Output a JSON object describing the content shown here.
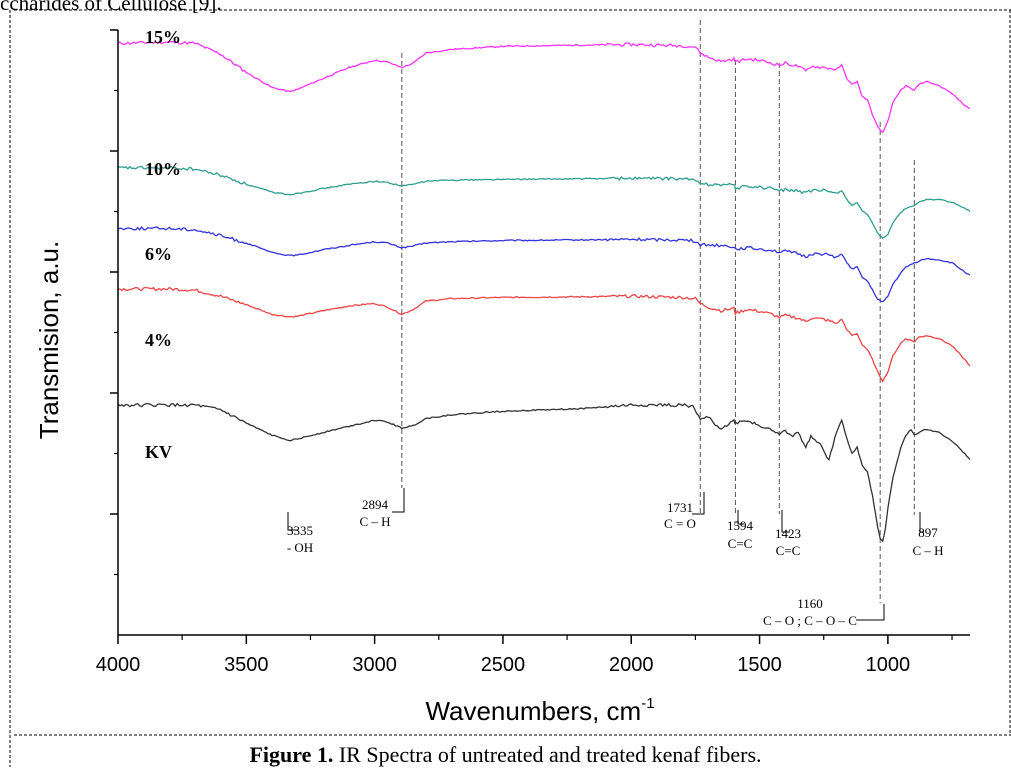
{
  "page": {
    "top_cut_text": "ccharides of Cellulose [9].",
    "caption_label": "Figure 1.",
    "caption_text": " IR Spectra of untreated and treated kenaf fibers."
  },
  "chart_data": {
    "type": "line",
    "title": "",
    "xlabel": "Wavenumbers, cm",
    "xlabel_superscript": "-1",
    "ylabel": "Transmision, a.u.",
    "xlim": [
      4000,
      680
    ],
    "x_reversed": true,
    "x_ticks": [
      4000,
      3500,
      3000,
      2500,
      2000,
      1500,
      1000
    ],
    "y_ticks_labeled": false,
    "ylim": [
      0,
      10
    ],
    "y_major_ticks": [
      2,
      4,
      6,
      8,
      10
    ],
    "grid": false,
    "series": [
      {
        "name": "15%",
        "color": "#ff33ff",
        "points": [
          [
            4000,
            9.78
          ],
          [
            3800,
            9.8
          ],
          [
            3700,
            9.78
          ],
          [
            3600,
            9.6
          ],
          [
            3500,
            9.3
          ],
          [
            3400,
            9.05
          ],
          [
            3330,
            8.98
          ],
          [
            3300,
            9.02
          ],
          [
            3200,
            9.2
          ],
          [
            3100,
            9.38
          ],
          [
            3000,
            9.5
          ],
          [
            2950,
            9.47
          ],
          [
            2894,
            9.38
          ],
          [
            2850,
            9.45
          ],
          [
            2800,
            9.62
          ],
          [
            2700,
            9.68
          ],
          [
            2500,
            9.73
          ],
          [
            2200,
            9.75
          ],
          [
            2000,
            9.76
          ],
          [
            1800,
            9.74
          ],
          [
            1750,
            9.72
          ],
          [
            1731,
            9.62
          ],
          [
            1700,
            9.55
          ],
          [
            1650,
            9.48
          ],
          [
            1600,
            9.52
          ],
          [
            1594,
            9.47
          ],
          [
            1550,
            9.52
          ],
          [
            1500,
            9.5
          ],
          [
            1450,
            9.45
          ],
          [
            1423,
            9.42
          ],
          [
            1400,
            9.45
          ],
          [
            1350,
            9.4
          ],
          [
            1320,
            9.32
          ],
          [
            1300,
            9.4
          ],
          [
            1250,
            9.38
          ],
          [
            1200,
            9.35
          ],
          [
            1180,
            9.42
          ],
          [
            1160,
            9.2
          ],
          [
            1140,
            9.1
          ],
          [
            1120,
            9.15
          ],
          [
            1100,
            8.9
          ],
          [
            1080,
            8.85
          ],
          [
            1060,
            8.6
          ],
          [
            1040,
            8.4
          ],
          [
            1020,
            8.3
          ],
          [
            1000,
            8.5
          ],
          [
            980,
            8.8
          ],
          [
            950,
            9.0
          ],
          [
            930,
            9.08
          ],
          [
            897,
            9.0
          ],
          [
            880,
            9.1
          ],
          [
            850,
            9.15
          ],
          [
            800,
            9.08
          ],
          [
            750,
            8.95
          ],
          [
            700,
            8.75
          ],
          [
            680,
            8.7
          ]
        ]
      },
      {
        "name": "10%",
        "color": "#2e9e8f",
        "points": [
          [
            4000,
            7.72
          ],
          [
            3800,
            7.72
          ],
          [
            3700,
            7.7
          ],
          [
            3600,
            7.6
          ],
          [
            3500,
            7.45
          ],
          [
            3400,
            7.32
          ],
          [
            3330,
            7.28
          ],
          [
            3300,
            7.3
          ],
          [
            3200,
            7.38
          ],
          [
            3100,
            7.45
          ],
          [
            3000,
            7.5
          ],
          [
            2950,
            7.48
          ],
          [
            2894,
            7.42
          ],
          [
            2850,
            7.45
          ],
          [
            2800,
            7.5
          ],
          [
            2700,
            7.52
          ],
          [
            2500,
            7.53
          ],
          [
            2200,
            7.54
          ],
          [
            2000,
            7.55
          ],
          [
            1800,
            7.54
          ],
          [
            1750,
            7.52
          ],
          [
            1731,
            7.45
          ],
          [
            1700,
            7.45
          ],
          [
            1650,
            7.45
          ],
          [
            1600,
            7.44
          ],
          [
            1594,
            7.38
          ],
          [
            1550,
            7.42
          ],
          [
            1500,
            7.4
          ],
          [
            1450,
            7.38
          ],
          [
            1423,
            7.35
          ],
          [
            1400,
            7.36
          ],
          [
            1350,
            7.34
          ],
          [
            1320,
            7.3
          ],
          [
            1300,
            7.34
          ],
          [
            1250,
            7.35
          ],
          [
            1200,
            7.3
          ],
          [
            1180,
            7.35
          ],
          [
            1160,
            7.2
          ],
          [
            1140,
            7.1
          ],
          [
            1120,
            7.15
          ],
          [
            1100,
            7.0
          ],
          [
            1080,
            6.95
          ],
          [
            1060,
            6.8
          ],
          [
            1040,
            6.65
          ],
          [
            1020,
            6.55
          ],
          [
            1000,
            6.62
          ],
          [
            980,
            6.82
          ],
          [
            950,
            6.98
          ],
          [
            930,
            7.05
          ],
          [
            897,
            7.1
          ],
          [
            880,
            7.15
          ],
          [
            850,
            7.2
          ],
          [
            800,
            7.2
          ],
          [
            750,
            7.15
          ],
          [
            700,
            7.05
          ],
          [
            680,
            7.0
          ]
        ]
      },
      {
        "name": "6%",
        "color": "#3333dd",
        "points": [
          [
            4000,
            6.72
          ],
          [
            3800,
            6.72
          ],
          [
            3700,
            6.7
          ],
          [
            3600,
            6.6
          ],
          [
            3500,
            6.48
          ],
          [
            3400,
            6.32
          ],
          [
            3330,
            6.27
          ],
          [
            3300,
            6.28
          ],
          [
            3200,
            6.37
          ],
          [
            3100,
            6.44
          ],
          [
            3000,
            6.5
          ],
          [
            2950,
            6.48
          ],
          [
            2894,
            6.4
          ],
          [
            2850,
            6.43
          ],
          [
            2800,
            6.48
          ],
          [
            2700,
            6.5
          ],
          [
            2500,
            6.52
          ],
          [
            2200,
            6.53
          ],
          [
            2000,
            6.54
          ],
          [
            1800,
            6.53
          ],
          [
            1750,
            6.51
          ],
          [
            1731,
            6.45
          ],
          [
            1700,
            6.45
          ],
          [
            1650,
            6.44
          ],
          [
            1600,
            6.42
          ],
          [
            1594,
            6.38
          ],
          [
            1550,
            6.4
          ],
          [
            1500,
            6.38
          ],
          [
            1450,
            6.36
          ],
          [
            1423,
            6.33
          ],
          [
            1400,
            6.34
          ],
          [
            1350,
            6.3
          ],
          [
            1320,
            6.25
          ],
          [
            1300,
            6.3
          ],
          [
            1250,
            6.3
          ],
          [
            1200,
            6.25
          ],
          [
            1180,
            6.3
          ],
          [
            1160,
            6.15
          ],
          [
            1140,
            6.05
          ],
          [
            1120,
            6.08
          ],
          [
            1100,
            5.92
          ],
          [
            1080,
            5.85
          ],
          [
            1060,
            5.7
          ],
          [
            1040,
            5.55
          ],
          [
            1020,
            5.5
          ],
          [
            1000,
            5.6
          ],
          [
            980,
            5.8
          ],
          [
            950,
            5.98
          ],
          [
            930,
            6.08
          ],
          [
            897,
            6.15
          ],
          [
            880,
            6.18
          ],
          [
            850,
            6.22
          ],
          [
            800,
            6.2
          ],
          [
            750,
            6.15
          ],
          [
            700,
            6.0
          ],
          [
            680,
            5.95
          ]
        ]
      },
      {
        "name": "4%",
        "color": "#ee4444",
        "points": [
          [
            4000,
            5.72
          ],
          [
            3800,
            5.72
          ],
          [
            3700,
            5.7
          ],
          [
            3600,
            5.6
          ],
          [
            3500,
            5.46
          ],
          [
            3400,
            5.3
          ],
          [
            3330,
            5.26
          ],
          [
            3300,
            5.27
          ],
          [
            3200,
            5.36
          ],
          [
            3100,
            5.44
          ],
          [
            3000,
            5.48
          ],
          [
            2950,
            5.42
          ],
          [
            2894,
            5.3
          ],
          [
            2850,
            5.38
          ],
          [
            2800,
            5.52
          ],
          [
            2700,
            5.56
          ],
          [
            2500,
            5.58
          ],
          [
            2200,
            5.59
          ],
          [
            2000,
            5.6
          ],
          [
            1800,
            5.58
          ],
          [
            1750,
            5.56
          ],
          [
            1731,
            5.48
          ],
          [
            1700,
            5.42
          ],
          [
            1650,
            5.36
          ],
          [
            1600,
            5.4
          ],
          [
            1594,
            5.32
          ],
          [
            1550,
            5.38
          ],
          [
            1500,
            5.35
          ],
          [
            1450,
            5.3
          ],
          [
            1423,
            5.25
          ],
          [
            1400,
            5.28
          ],
          [
            1350,
            5.24
          ],
          [
            1320,
            5.18
          ],
          [
            1300,
            5.24
          ],
          [
            1250,
            5.22
          ],
          [
            1200,
            5.15
          ],
          [
            1180,
            5.22
          ],
          [
            1160,
            5.05
          ],
          [
            1140,
            4.95
          ],
          [
            1120,
            4.98
          ],
          [
            1100,
            4.8
          ],
          [
            1080,
            4.72
          ],
          [
            1060,
            4.55
          ],
          [
            1040,
            4.35
          ],
          [
            1020,
            4.2
          ],
          [
            1000,
            4.35
          ],
          [
            980,
            4.62
          ],
          [
            950,
            4.82
          ],
          [
            930,
            4.9
          ],
          [
            897,
            4.85
          ],
          [
            880,
            4.92
          ],
          [
            850,
            4.95
          ],
          [
            800,
            4.9
          ],
          [
            750,
            4.78
          ],
          [
            700,
            4.55
          ],
          [
            680,
            4.45
          ]
        ]
      },
      {
        "name": "KV",
        "color": "#333333",
        "points": [
          [
            4000,
            3.8
          ],
          [
            3800,
            3.8
          ],
          [
            3700,
            3.8
          ],
          [
            3600,
            3.72
          ],
          [
            3500,
            3.5
          ],
          [
            3400,
            3.3
          ],
          [
            3330,
            3.22
          ],
          [
            3300,
            3.24
          ],
          [
            3200,
            3.35
          ],
          [
            3100,
            3.45
          ],
          [
            3000,
            3.55
          ],
          [
            2950,
            3.52
          ],
          [
            2894,
            3.42
          ],
          [
            2850,
            3.46
          ],
          [
            2800,
            3.58
          ],
          [
            2700,
            3.64
          ],
          [
            2500,
            3.7
          ],
          [
            2200,
            3.74
          ],
          [
            2000,
            3.8
          ],
          [
            1800,
            3.8
          ],
          [
            1760,
            3.78
          ],
          [
            1731,
            3.55
          ],
          [
            1700,
            3.62
          ],
          [
            1680,
            3.5
          ],
          [
            1650,
            3.42
          ],
          [
            1620,
            3.48
          ],
          [
            1600,
            3.55
          ],
          [
            1594,
            3.5
          ],
          [
            1560,
            3.55
          ],
          [
            1520,
            3.5
          ],
          [
            1500,
            3.45
          ],
          [
            1460,
            3.42
          ],
          [
            1423,
            3.3
          ],
          [
            1400,
            3.38
          ],
          [
            1370,
            3.28
          ],
          [
            1350,
            3.35
          ],
          [
            1320,
            3.1
          ],
          [
            1300,
            3.3
          ],
          [
            1270,
            3.18
          ],
          [
            1250,
            3.05
          ],
          [
            1230,
            2.9
          ],
          [
            1200,
            3.35
          ],
          [
            1180,
            3.55
          ],
          [
            1160,
            3.25
          ],
          [
            1140,
            3.0
          ],
          [
            1120,
            3.1
          ],
          [
            1100,
            2.8
          ],
          [
            1080,
            2.7
          ],
          [
            1060,
            2.3
          ],
          [
            1040,
            1.8
          ],
          [
            1030,
            1.6
          ],
          [
            1020,
            1.55
          ],
          [
            1010,
            1.75
          ],
          [
            1000,
            2.1
          ],
          [
            980,
            2.6
          ],
          [
            950,
            3.1
          ],
          [
            930,
            3.3
          ],
          [
            910,
            3.4
          ],
          [
            897,
            3.3
          ],
          [
            880,
            3.35
          ],
          [
            850,
            3.4
          ],
          [
            800,
            3.35
          ],
          [
            750,
            3.2
          ],
          [
            700,
            3.0
          ],
          [
            680,
            2.9
          ]
        ]
      }
    ],
    "series_labels": [
      "15%",
      "10%",
      "6%",
      "4%",
      "KV"
    ],
    "reference_lines": [
      2894,
      1731,
      1594,
      1423,
      1030,
      897
    ],
    "annotations": [
      {
        "wavenumber": "3335",
        "group": "- OH"
      },
      {
        "wavenumber": "2894",
        "group": "C – H"
      },
      {
        "wavenumber": "1731",
        "group": "C = O"
      },
      {
        "wavenumber": "1594",
        "group": "C=C"
      },
      {
        "wavenumber": "1423",
        "group": "C=C"
      },
      {
        "wavenumber": "1160",
        "group": "C – O ; C – O – C"
      },
      {
        "wavenumber": "897",
        "group": "C – H"
      }
    ]
  }
}
